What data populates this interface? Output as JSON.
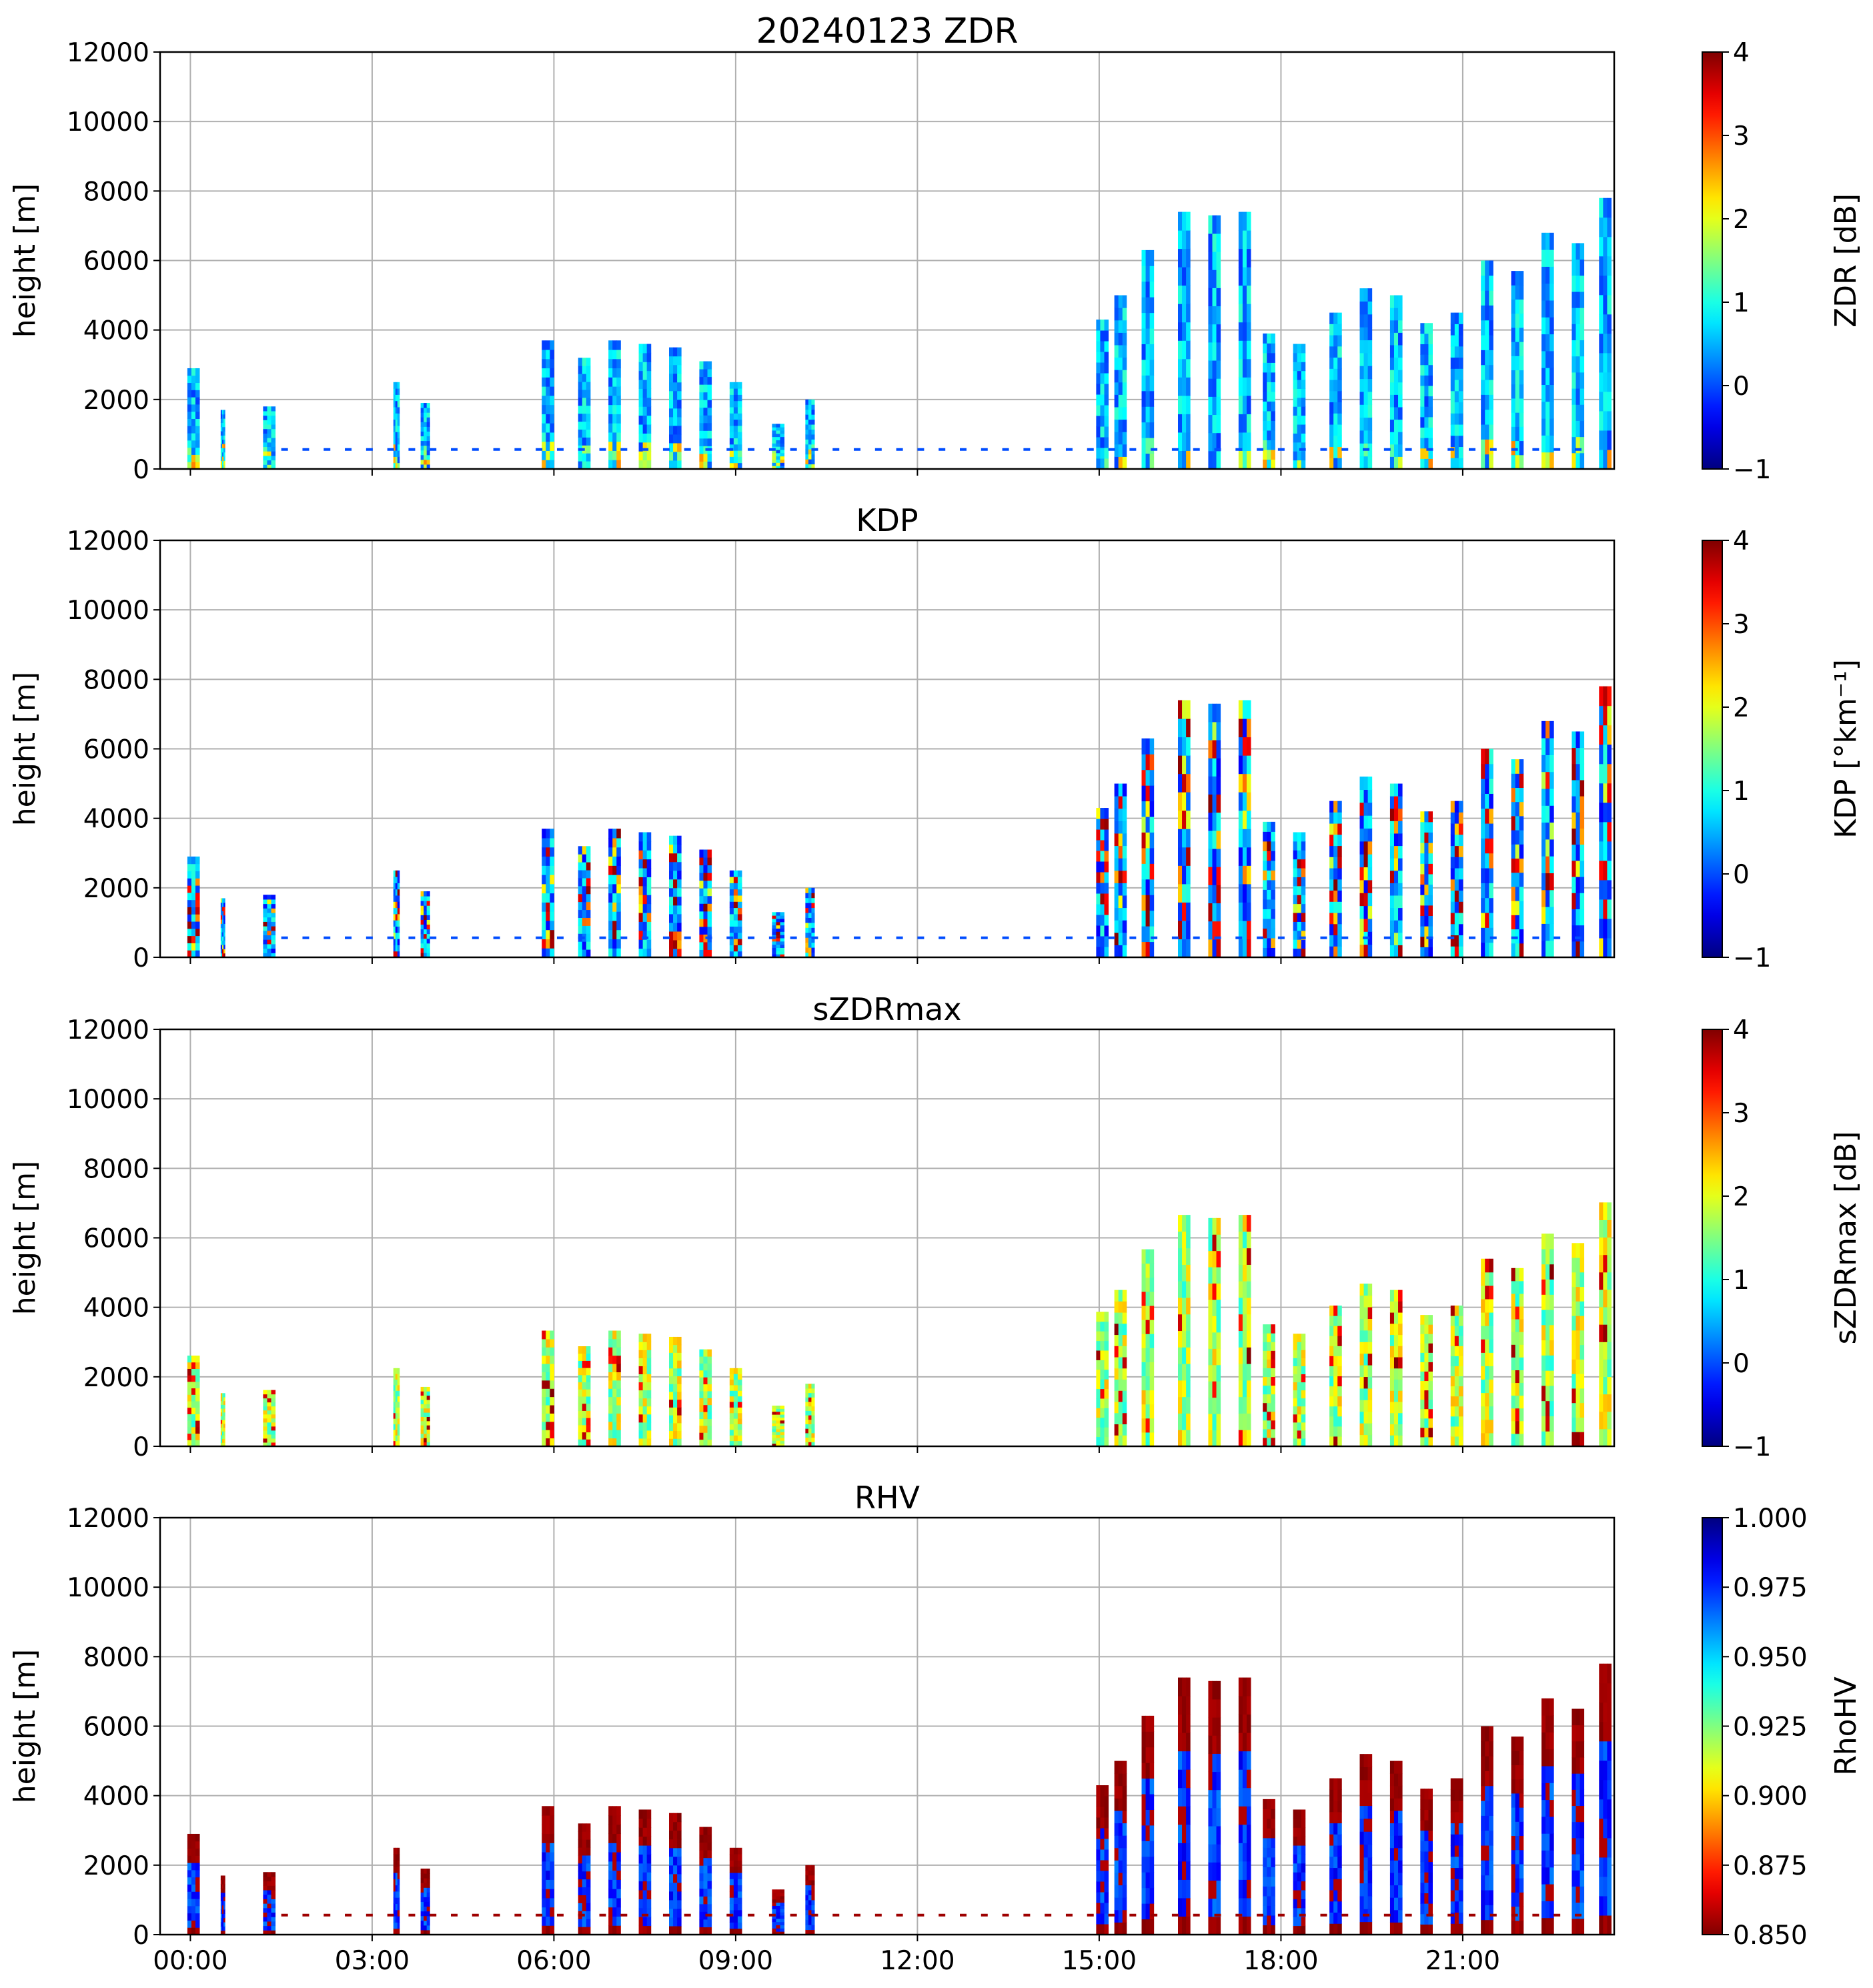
{
  "chart_data": {
    "type": "heatmap",
    "x": {
      "range_hours": [
        -0.5,
        23.5
      ],
      "tick_hours": [
        0,
        3,
        6,
        9,
        12,
        15,
        18,
        21
      ],
      "tick_labels": [
        "00:00",
        "03:00",
        "06:00",
        "09:00",
        "12:00",
        "15:00",
        "18:00",
        "21:00"
      ]
    },
    "shared_ylabel": "height [m]",
    "ylim": [
      0,
      12000
    ],
    "yticks": [
      0,
      2000,
      4000,
      6000,
      8000,
      10000,
      12000
    ],
    "ytick_labels": [
      "0",
      "2000",
      "4000",
      "6000",
      "8000",
      "10000",
      "12000"
    ],
    "grid": true,
    "colormap": "jet",
    "precip_columns": [
      {
        "start": -0.05,
        "end": 0.15,
        "top": 2900
      },
      {
        "start": 0.5,
        "end": 0.57,
        "top": 1700
      },
      {
        "start": 1.2,
        "end": 1.4,
        "top": 1800
      },
      {
        "start": 3.35,
        "end": 3.45,
        "top": 2500
      },
      {
        "start": 3.8,
        "end": 3.95,
        "top": 1900
      },
      {
        "start": 5.8,
        "end": 6.0,
        "top": 3700
      },
      {
        "start": 6.4,
        "end": 6.6,
        "top": 3200
      },
      {
        "start": 6.9,
        "end": 7.1,
        "top": 3700
      },
      {
        "start": 7.4,
        "end": 7.6,
        "top": 3600
      },
      {
        "start": 7.9,
        "end": 8.1,
        "top": 3500
      },
      {
        "start": 8.4,
        "end": 8.6,
        "top": 3100
      },
      {
        "start": 8.9,
        "end": 9.1,
        "top": 2500
      },
      {
        "start": 9.6,
        "end": 9.8,
        "top": 1300
      },
      {
        "start": 10.15,
        "end": 10.3,
        "top": 2000
      },
      {
        "start": 14.95,
        "end": 15.15,
        "top": 4300
      },
      {
        "start": 15.25,
        "end": 15.45,
        "top": 5000
      },
      {
        "start": 15.7,
        "end": 15.9,
        "top": 6300
      },
      {
        "start": 16.3,
        "end": 16.5,
        "top": 7400
      },
      {
        "start": 16.8,
        "end": 17.0,
        "top": 7300
      },
      {
        "start": 17.3,
        "end": 17.5,
        "top": 7400
      },
      {
        "start": 17.7,
        "end": 17.9,
        "top": 3900
      },
      {
        "start": 18.2,
        "end": 18.4,
        "top": 3600
      },
      {
        "start": 18.8,
        "end": 19.0,
        "top": 4500
      },
      {
        "start": 19.3,
        "end": 19.5,
        "top": 5200
      },
      {
        "start": 19.8,
        "end": 20.0,
        "top": 5000
      },
      {
        "start": 20.3,
        "end": 20.5,
        "top": 4200
      },
      {
        "start": 20.8,
        "end": 21.0,
        "top": 4500
      },
      {
        "start": 21.3,
        "end": 21.5,
        "top": 6000
      },
      {
        "start": 21.8,
        "end": 22.0,
        "top": 5700
      },
      {
        "start": 22.3,
        "end": 22.5,
        "top": 6800
      },
      {
        "start": 22.8,
        "end": 23.0,
        "top": 6500
      },
      {
        "start": 23.25,
        "end": 23.45,
        "top": 7800
      }
    ],
    "panels": [
      {
        "title": "20240123 ZDR",
        "colorbar_label": "ZDR [dB]",
        "clim": [
          -1,
          4
        ],
        "cticks": [
          -1,
          0,
          1,
          2,
          3,
          4
        ],
        "ctick_labels": [
          "−1",
          "0",
          "1",
          "2",
          "3",
          "4"
        ]
      },
      {
        "title": "KDP",
        "colorbar_label": "KDP [°km⁻¹]",
        "clim": [
          -1,
          4
        ],
        "cticks": [
          -1,
          0,
          1,
          2,
          3,
          4
        ],
        "ctick_labels": [
          "−1",
          "0",
          "1",
          "2",
          "3",
          "4"
        ]
      },
      {
        "title": "sZDRmax",
        "colorbar_label": "sZDRmax [dB]",
        "clim": [
          -1,
          4
        ],
        "cticks": [
          -1,
          0,
          1,
          2,
          3,
          4
        ],
        "ctick_labels": [
          "−1",
          "0",
          "1",
          "2",
          "3",
          "4"
        ]
      },
      {
        "title": "RHV",
        "colorbar_label": "RhoHV",
        "clim": [
          0.85,
          1.0
        ],
        "reversed_colormap": true,
        "cticks": [
          0.85,
          0.875,
          0.9,
          0.925,
          0.95,
          0.975,
          1.0
        ],
        "ctick_labels": [
          "0.850",
          "0.875",
          "0.900",
          "0.925",
          "0.950",
          "0.975",
          "1.000"
        ]
      }
    ]
  }
}
